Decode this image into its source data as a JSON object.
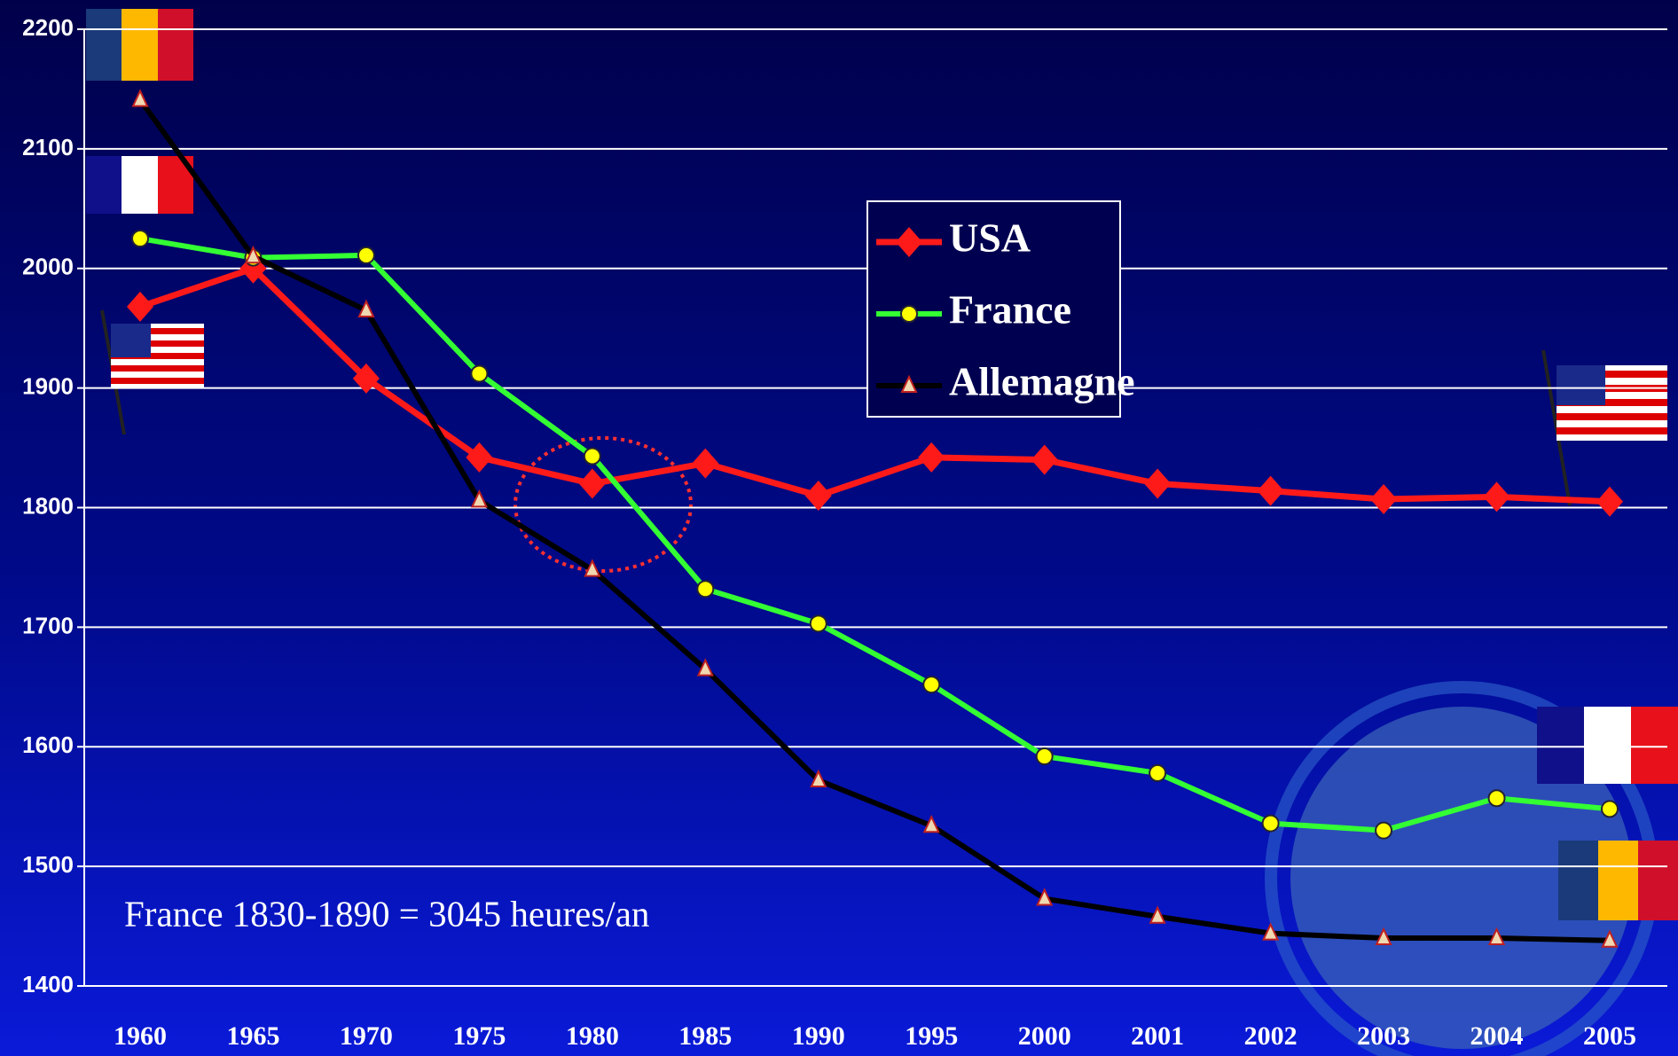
{
  "chart_data": {
    "type": "line",
    "categories": [
      "1960",
      "1965",
      "1970",
      "1975",
      "1980",
      "1985",
      "1990",
      "1995",
      "2000",
      "2001",
      "2002",
      "2003",
      "2004",
      "2005"
    ],
    "series": [
      {
        "name": "USA",
        "color": "#ff1a1a",
        "values": [
          1968,
          2000,
          1908,
          1842,
          1820,
          1837,
          1810,
          1842,
          1840,
          1820,
          1814,
          1807,
          1809,
          1805
        ]
      },
      {
        "name": "France",
        "color": "#33ff33",
        "values": [
          2025,
          2009,
          2011,
          1912,
          1843,
          1732,
          1703,
          1652,
          1592,
          1578,
          1536,
          1530,
          1557,
          1548
        ]
      },
      {
        "name": "Allemagne",
        "color": "#000000",
        "values": [
          2141,
          2010,
          1965,
          1806,
          1748,
          1665,
          1572,
          1534,
          1473,
          1458,
          1444,
          1440,
          1440,
          1438
        ]
      }
    ],
    "ylim": [
      1400,
      2200
    ],
    "yticks": [
      1400,
      1500,
      1600,
      1700,
      1800,
      1900,
      2000,
      2100,
      2200
    ],
    "grid": true,
    "annotation": "France 1830-1890 = 3045 heures/an"
  }
}
